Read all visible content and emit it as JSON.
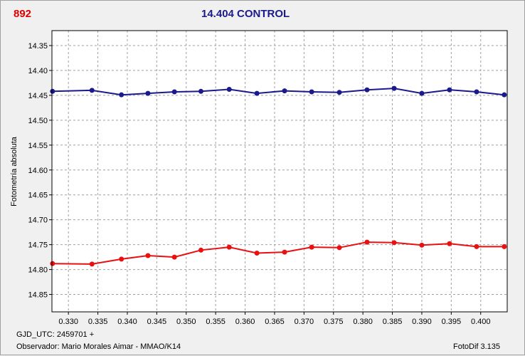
{
  "header": {
    "object_id": "892",
    "title": "14.404 CONTROL"
  },
  "footer": {
    "gjd": "GJD_UTC: 2459701 +",
    "observer": "Observador: Mario Morales Aimar - MMAO/K14",
    "software": "FotoDif 3.135"
  },
  "colors": {
    "series_blue": "#1a1a8c",
    "series_red": "#e81010",
    "title": "#1a1a8c",
    "object_id": "#e00000"
  },
  "chart_data": {
    "type": "line",
    "title": "14.404 CONTROL",
    "xlabel": "",
    "ylabel": "Fotometría absoluta",
    "xlim": [
      0.3272,
      0.4045
    ],
    "ylim": [
      14.885,
      14.32
    ],
    "y_inverted": true,
    "grid": true,
    "x_ticks": [
      "0.330",
      "0.335",
      "0.340",
      "0.345",
      "0.350",
      "0.355",
      "0.360",
      "0.365",
      "0.370",
      "0.375",
      "0.380",
      "0.385",
      "0.390",
      "0.395",
      "0.400"
    ],
    "x_tick_values": [
      0.33,
      0.335,
      0.34,
      0.345,
      0.35,
      0.355,
      0.36,
      0.365,
      0.37,
      0.375,
      0.38,
      0.385,
      0.39,
      0.395,
      0.4
    ],
    "y_ticks": [
      "14.35",
      "14.40",
      "14.45",
      "14.50",
      "14.55",
      "14.60",
      "14.65",
      "14.70",
      "14.75",
      "14.80",
      "14.85"
    ],
    "y_tick_values": [
      14.35,
      14.4,
      14.45,
      14.5,
      14.55,
      14.6,
      14.65,
      14.7,
      14.75,
      14.8,
      14.85
    ],
    "series": [
      {
        "color": "#1a1a8c",
        "x": [
          0.3273,
          0.334,
          0.339,
          0.3435,
          0.348,
          0.3525,
          0.3573,
          0.362,
          0.3667,
          0.3713,
          0.376,
          0.3807,
          0.3853,
          0.39,
          0.3947,
          0.3993,
          0.404
        ],
        "y": [
          14.442,
          14.44,
          14.449,
          14.446,
          14.443,
          14.442,
          14.438,
          14.446,
          14.441,
          14.443,
          14.444,
          14.439,
          14.436,
          14.446,
          14.439,
          14.443,
          14.449
        ]
      },
      {
        "color": "#e81010",
        "x": [
          0.3273,
          0.334,
          0.339,
          0.3435,
          0.348,
          0.3525,
          0.3573,
          0.362,
          0.3667,
          0.3713,
          0.376,
          0.3807,
          0.3853,
          0.39,
          0.3947,
          0.3993,
          0.404
        ],
        "y": [
          14.788,
          14.789,
          14.779,
          14.772,
          14.775,
          14.761,
          14.755,
          14.767,
          14.765,
          14.755,
          14.756,
          14.745,
          14.746,
          14.751,
          14.748,
          14.754,
          14.754
        ]
      }
    ]
  }
}
